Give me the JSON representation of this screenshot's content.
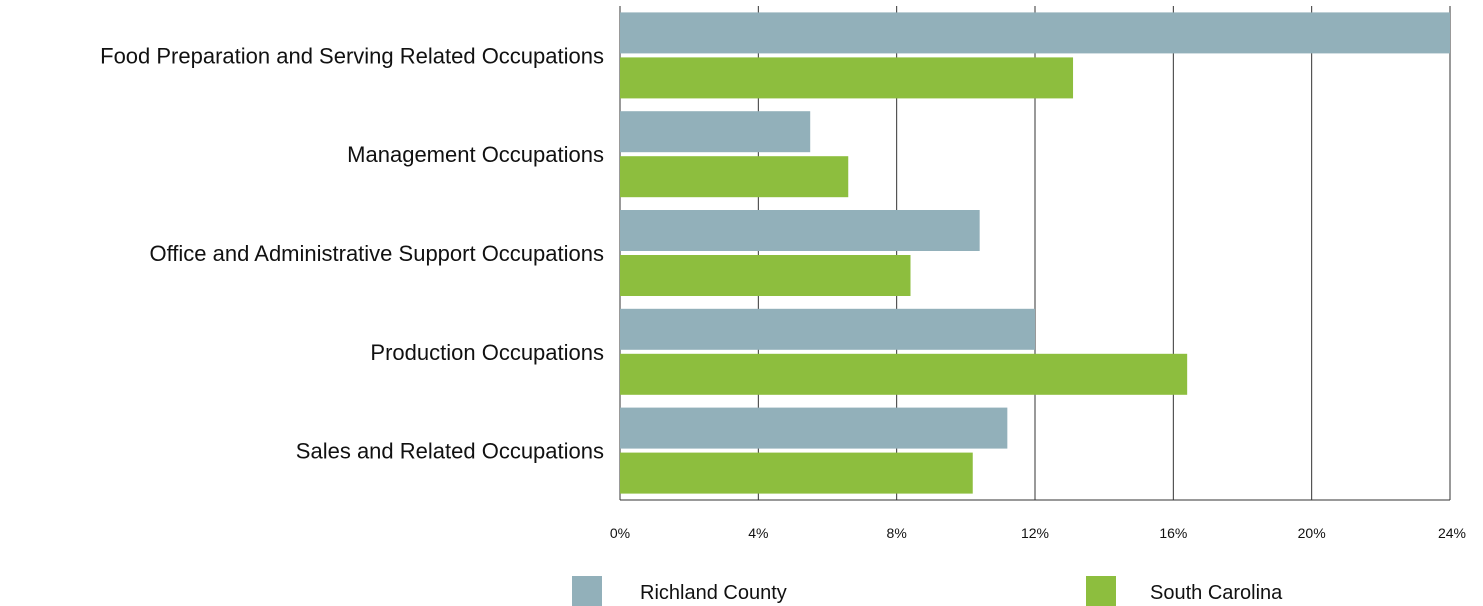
{
  "chart_data": {
    "type": "bar",
    "orientation": "horizontal",
    "categories": [
      "Food Preparation and Serving Related Occupations",
      "Management Occupations",
      "Office and Administrative Support Occupations",
      "Production Occupations",
      "Sales and Related Occupations"
    ],
    "series": [
      {
        "name": "Richland County",
        "color": "#92b0ba",
        "values": [
          24.0,
          5.5,
          10.4,
          12.0,
          11.2
        ]
      },
      {
        "name": "South Carolina",
        "color": "#8dbe3e",
        "values": [
          13.1,
          6.6,
          8.4,
          16.4,
          10.2
        ]
      }
    ],
    "xlim": [
      0,
      24
    ],
    "xticks": [
      0,
      4,
      8,
      12,
      16,
      20,
      24
    ],
    "xtick_labels": [
      "0%",
      "4%",
      "8%",
      "12%",
      "16%",
      "20%",
      "24%"
    ],
    "title": "",
    "xlabel": "",
    "ylabel": "",
    "grid": "vertical",
    "legend_position": "bottom"
  }
}
